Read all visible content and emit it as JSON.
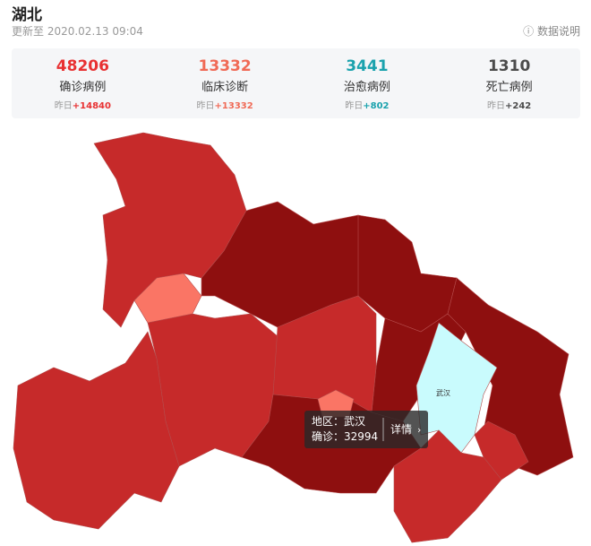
{
  "header": {
    "title": "湖北",
    "updated": "更新至 2020.02.13 09:04",
    "help": "数据说明"
  },
  "stats": [
    {
      "value": "48206",
      "label": "确诊病例",
      "delta_prefix": "昨日",
      "delta": "+14840"
    },
    {
      "value": "13332",
      "label": "临床诊断",
      "delta_prefix": "昨日",
      "delta": "+13332"
    },
    {
      "value": "3441",
      "label": "治愈病例",
      "delta_prefix": "昨日",
      "delta": "+802"
    },
    {
      "value": "1310",
      "label": "死亡病例",
      "delta_prefix": "昨日",
      "delta": "+242"
    }
  ],
  "map": {
    "label": "武汉",
    "tooltip": {
      "region": "地区：武汉",
      "confirmed": "确诊：32994",
      "details": "详情"
    }
  }
}
